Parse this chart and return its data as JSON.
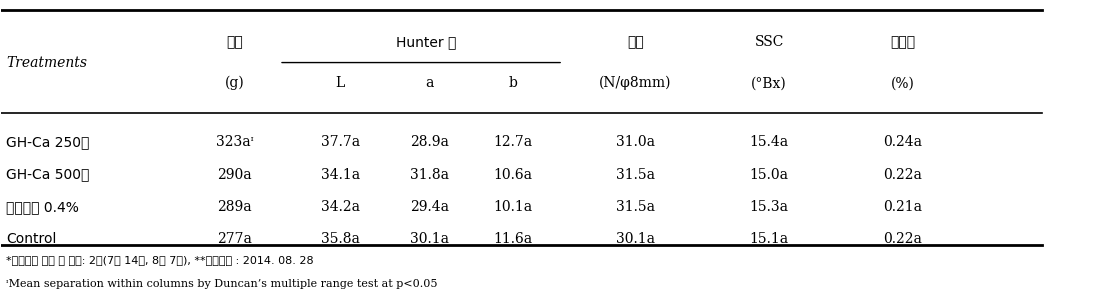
{
  "rows": [
    [
      "GH-Ca 250배",
      "323aᶦ",
      "37.7a",
      "28.9a",
      "12.7a",
      "31.0a",
      "15.4a",
      "0.24a"
    ],
    [
      "GH-Ca 500배",
      "290a",
      "34.1a",
      "31.8a",
      "10.6a",
      "31.5a",
      "15.0a",
      "0.22a"
    ],
    [
      "염화칼싘 0.4%",
      "289a",
      "34.2a",
      "29.4a",
      "10.1a",
      "31.5a",
      "15.3a",
      "0.21a"
    ],
    [
      "Control",
      "277a",
      "35.8a",
      "30.1a",
      "11.6a",
      "30.1a",
      "15.1a",
      "0.22a"
    ]
  ],
  "h1_treatments": "Treatments",
  "h1_gwajung": "과중",
  "h1_hunter": "Hunter 값",
  "h1_gyeongdo": "경도",
  "h1_ssc": "SSC",
  "h1_sanhamnyang": "산함량",
  "h2_g": "(g)",
  "h2_L": "L",
  "h2_a": "a",
  "h2_b": "b",
  "h2_gyeongdo_unit": "(N/φ8mm)",
  "h2_ssc_unit": "(°Bx)",
  "h2_pct": "(%)",
  "footnote1": "*수체살포 횟수 및 시기: 2회(7월 14일, 8월 7일), **수확시기 : 2014. 08. 28",
  "footnote2": "ᶦMean separation within columns by Duncan’s multiple range test at p<0.05",
  "bg_color": "#ffffff",
  "text_color": "#000000",
  "font_size": 10,
  "small_font_size": 8
}
